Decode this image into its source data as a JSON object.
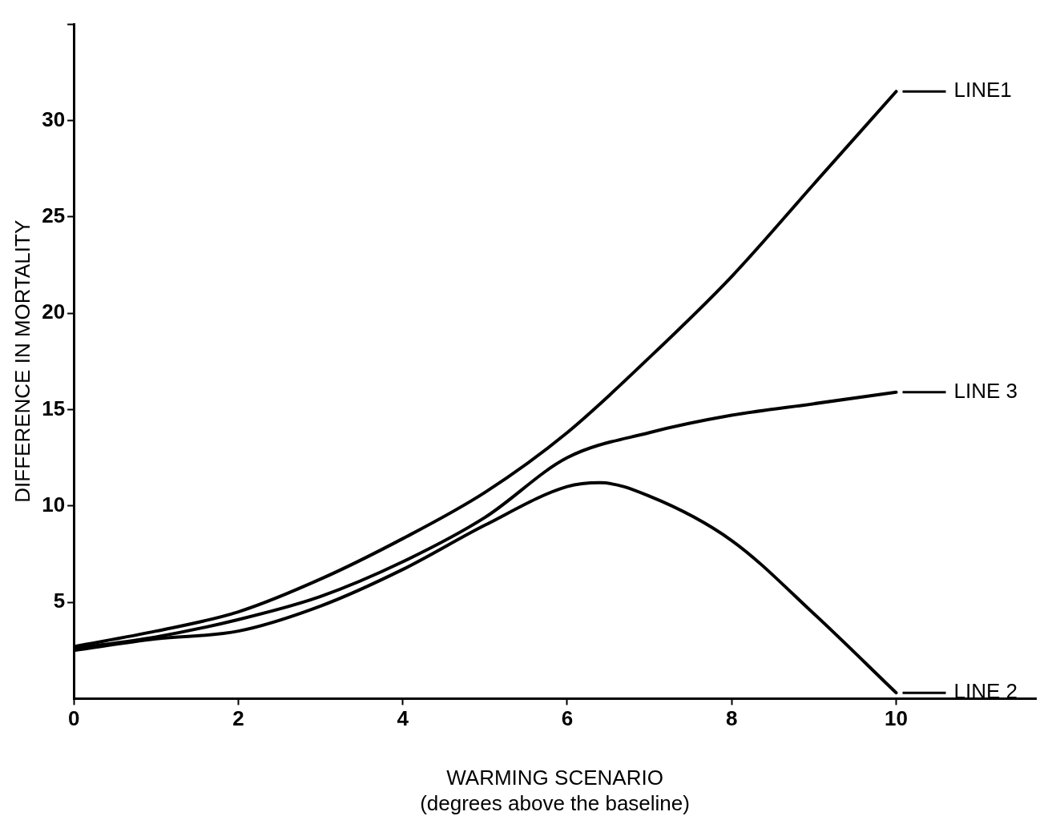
{
  "chart_data": {
    "type": "line",
    "xlabel": "WARMING SCENARIO\n(degrees above the baseline)",
    "ylabel": "DIFFERENCE IN MORTALITY",
    "x": [
      0,
      1,
      2,
      3,
      4,
      5,
      6,
      7,
      8,
      9,
      10
    ],
    "series": [
      {
        "name": "LINE1",
        "color": "#000000",
        "values": [
          2.7,
          3.5,
          4.5,
          6.2,
          8.3,
          10.7,
          13.8,
          17.7,
          21.9,
          26.7,
          31.5
        ]
      },
      {
        "name": "LINE 3",
        "color": "#000000",
        "values": [
          2.6,
          3.2,
          4.1,
          5.3,
          7.1,
          9.4,
          12.5,
          13.8,
          14.7,
          15.3,
          15.9
        ]
      },
      {
        "name": "LINE 2",
        "color": "#000000",
        "x": [
          0,
          1,
          2,
          3,
          4,
          5,
          6,
          6.4,
          7,
          8,
          9,
          10
        ],
        "values": [
          2.5,
          3.1,
          3.5,
          4.8,
          6.7,
          9.0,
          11.0,
          11.2,
          10.5,
          8.2,
          4.4,
          0.3
        ]
      }
    ],
    "xlim": [
      0,
      11.7
    ],
    "xticks": [
      0,
      2,
      4,
      6,
      8,
      10
    ],
    "ylim": [
      0,
      35
    ],
    "yticks": [
      5,
      10,
      15,
      20,
      25,
      30,
      {
        "value": 35,
        "label": null
      }
    ],
    "grid": false,
    "legend": "right",
    "marker": "none",
    "line_style": "solid"
  }
}
